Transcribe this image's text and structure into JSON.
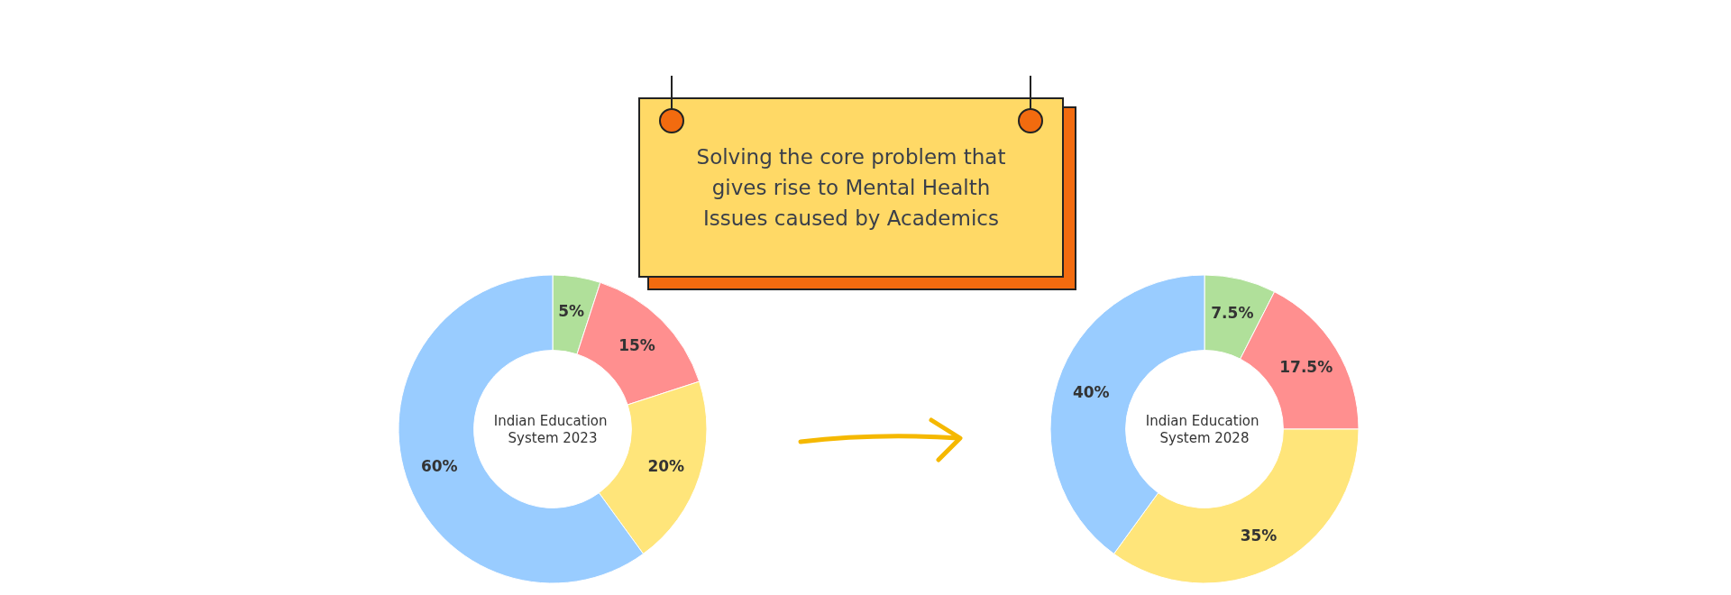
{
  "chart_data": [
    {
      "type": "donut",
      "title": "Indian Education System 2023",
      "annotations": [
        "Solving the core problem that gives rise to Mental Health Issues caused by Academics"
      ],
      "categories": [
        null,
        null,
        null,
        null
      ],
      "values": [
        5,
        15,
        20,
        60
      ],
      "colors": [
        "#b0e09a",
        "#ff8f8f",
        "#ffe57a",
        "#99ccff"
      ],
      "value_labels": [
        "5%",
        "15%",
        "20%",
        "60%"
      ]
    },
    {
      "type": "donut",
      "title": "Indian Education System 2028",
      "categories": [
        null,
        null,
        null,
        null
      ],
      "values": [
        7.5,
        17.5,
        35,
        40
      ],
      "colors": [
        "#b0e09a",
        "#ff8f8f",
        "#ffe57a",
        "#99ccff"
      ],
      "value_labels": [
        "7.5%",
        "17.5%",
        "35%",
        "40%"
      ]
    }
  ]
}
